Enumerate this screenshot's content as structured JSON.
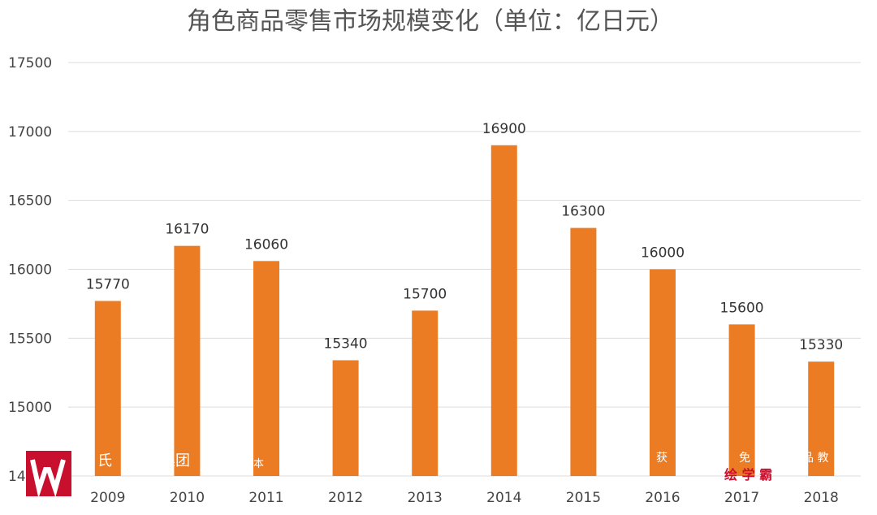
{
  "chart_data": {
    "type": "bar",
    "title": "角色商品零售市场规模变化（单位：亿日元）",
    "xlabel": "",
    "ylabel": "",
    "categories": [
      "2009",
      "2010",
      "2011",
      "2012",
      "2013",
      "2014",
      "2015",
      "2016",
      "2017",
      "2018"
    ],
    "values": [
      15770,
      16170,
      16060,
      15340,
      15700,
      16900,
      16300,
      16000,
      15600,
      15330
    ],
    "ylim": [
      14500,
      17500
    ],
    "yticks": [
      "14500",
      "15000",
      "15500",
      "16000",
      "16500",
      "17000",
      "17500"
    ],
    "grid": true,
    "legend": "none",
    "bar_color": "#ec7c24"
  },
  "watermark": {
    "logo_color": "#c8102e",
    "left_text_1": "氏",
    "left_text_2": "集团",
    "left_text_3": "本",
    "right_text_1": "获",
    "right_text_2": "免",
    "right_text_3": "品 教",
    "brand": "绘 学 霸"
  }
}
